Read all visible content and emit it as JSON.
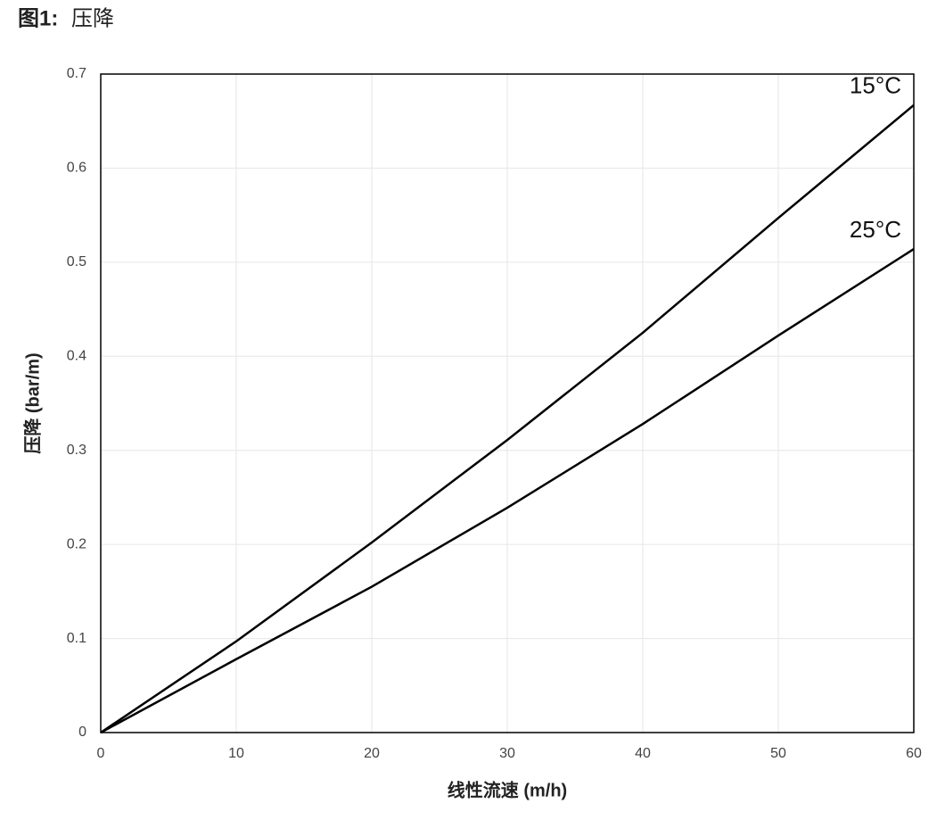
{
  "chart_data": {
    "type": "line",
    "title_prefix": "图1:",
    "title": "压降",
    "x_label": "线性流速 (m/h)",
    "y_label": "压降 (bar/m)",
    "x": [
      0,
      10,
      20,
      30,
      40,
      50,
      60
    ],
    "series": [
      {
        "name": "15°C",
        "color": "#000000",
        "values": [
          0,
          0.097,
          0.202,
          0.311,
          0.425,
          0.547,
          0.667
        ]
      },
      {
        "name": "25°C",
        "color": "#000000",
        "values": [
          0,
          0.078,
          0.155,
          0.239,
          0.328,
          0.422,
          0.514
        ]
      }
    ],
    "xlim": [
      0,
      60
    ],
    "xticks": [
      0,
      10,
      20,
      30,
      40,
      50,
      60
    ],
    "ylim": [
      0,
      0.7
    ],
    "yticks": [
      0,
      0.1,
      0.2,
      0.3,
      0.4,
      0.5,
      0.6,
      0.7
    ],
    "grid": true
  }
}
